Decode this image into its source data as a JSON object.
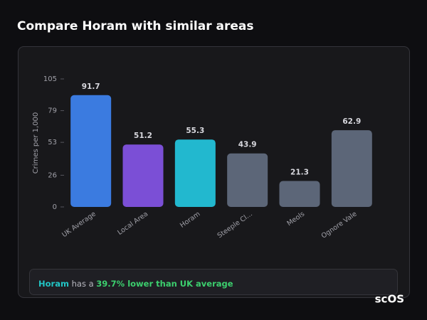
{
  "header": {
    "title": "Compare Horam with similar areas"
  },
  "chart_data": {
    "type": "bar",
    "y_label": "Crimes per 1,000",
    "categories": [
      "UK Average",
      "Local Area",
      "Horam",
      "Steeple Cl...",
      "Meols",
      "Ognore Vale"
    ],
    "values": [
      91.7,
      51.2,
      55.3,
      43.9,
      21.3,
      62.9
    ],
    "colors": [
      "#3b7be0",
      "#7b4fd6",
      "#22b8cf",
      "#5c6678",
      "#5c6678",
      "#5c6678"
    ],
    "ylim": [
      0,
      105
    ],
    "yticks": [
      0,
      26,
      53,
      79,
      105
    ]
  },
  "footer": {
    "area": "Horam",
    "text": "has a",
    "highlight": "39.7% lower than UK average"
  },
  "logo": "scOS"
}
